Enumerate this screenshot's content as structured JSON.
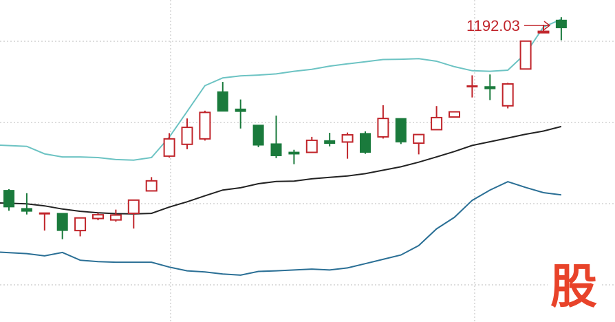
{
  "chart_data": {
    "type": "candlestick",
    "indicator": "bollinger-bands",
    "annotation": {
      "label": "1192.03"
    },
    "candles": [
      {
        "open": 1130.8,
        "close": 1125.0,
        "high": 1131.2,
        "low": 1123.7
      },
      {
        "open": 1124.5,
        "close": 1123.5,
        "high": 1129.8,
        "low": 1122.4
      },
      {
        "open": 1123.0,
        "close": 1123.0,
        "high": 1123.0,
        "low": 1116.8
      },
      {
        "open": 1122.8,
        "close": 1116.8,
        "high": 1122.8,
        "low": 1113.8
      },
      {
        "open": 1116.8,
        "close": 1121.2,
        "high": 1121.2,
        "low": 1114.8
      },
      {
        "open": 1121.0,
        "close": 1122.3,
        "high": 1122.9,
        "low": 1120.4
      },
      {
        "open": 1120.5,
        "close": 1122.2,
        "high": 1124.1,
        "low": 1119.9
      },
      {
        "open": 1122.8,
        "close": 1127.4,
        "high": 1127.4,
        "low": 1117.5
      },
      {
        "open": 1130.6,
        "close": 1134.1,
        "high": 1135.4,
        "low": 1130.6
      },
      {
        "open": 1142.7,
        "close": 1148.7,
        "high": 1150.7,
        "low": 1142.2
      },
      {
        "open": 1146.8,
        "close": 1152.7,
        "high": 1155.8,
        "low": 1145.1
      },
      {
        "open": 1148.7,
        "close": 1157.9,
        "high": 1158.5,
        "low": 1148.1
      },
      {
        "open": 1165.1,
        "close": 1158.3,
        "high": 1168.5,
        "low": 1158.3
      },
      {
        "open": 1159.1,
        "close": 1158.2,
        "high": 1162.4,
        "low": 1152.3
      },
      {
        "open": 1153.5,
        "close": 1146.5,
        "high": 1153.5,
        "low": 1145.8
      },
      {
        "open": 1147.0,
        "close": 1142.8,
        "high": 1156.8,
        "low": 1142.0
      },
      {
        "open": 1144.1,
        "close": 1143.4,
        "high": 1144.9,
        "low": 1139.9
      },
      {
        "open": 1144.0,
        "close": 1148.2,
        "high": 1149.4,
        "low": 1144.0
      },
      {
        "open": 1148.1,
        "close": 1147.1,
        "high": 1150.8,
        "low": 1146.1
      },
      {
        "open": 1147.6,
        "close": 1150.1,
        "high": 1150.9,
        "low": 1141.8
      },
      {
        "open": 1150.6,
        "close": 1144.0,
        "high": 1151.3,
        "low": 1143.5
      },
      {
        "open": 1149.4,
        "close": 1155.8,
        "high": 1160.4,
        "low": 1148.8
      },
      {
        "open": 1155.8,
        "close": 1147.6,
        "high": 1155.8,
        "low": 1146.9
      },
      {
        "open": 1147.2,
        "close": 1150.2,
        "high": 1150.2,
        "low": 1143.3
      },
      {
        "open": 1151.9,
        "close": 1156.1,
        "high": 1160.1,
        "low": 1151.9
      },
      {
        "open": 1156.3,
        "close": 1158.1,
        "high": 1158.1,
        "low": 1156.3
      },
      {
        "open": 1167.2,
        "close": 1167.2,
        "high": 1170.8,
        "low": 1163.1
      },
      {
        "open": 1166.9,
        "close": 1166.1,
        "high": 1171.1,
        "low": 1162.2
      },
      {
        "open": 1160.2,
        "close": 1167.8,
        "high": 1168.2,
        "low": 1159.3
      },
      {
        "open": 1173.0,
        "close": 1182.7,
        "high": 1182.7,
        "low": 1173.0
      },
      {
        "open": 1185.6,
        "close": 1186.1,
        "high": 1188.4,
        "low": 1185.6
      },
      {
        "open": 1190.0,
        "close": 1187.3,
        "high": 1191.0,
        "low": 1183.0
      }
    ],
    "bollinger": {
      "upper": [
        1146.5,
        1146.1,
        1143.5,
        1142.4,
        1142.4,
        1142.2,
        1141.5,
        1141.3,
        1142.2,
        1149.3,
        1158.2,
        1167.2,
        1169.9,
        1170.6,
        1170.9,
        1171.3,
        1172.2,
        1172.9,
        1174.0,
        1174.8,
        1175.5,
        1176.3,
        1176.4,
        1176.6,
        1175.7,
        1173.8,
        1172.4,
        1172.2,
        1172.6,
        1178.4,
        1187.6,
        1190.3
      ],
      "middle": [
        1126.4,
        1126.1,
        1125.4,
        1124.3,
        1123.5,
        1123.0,
        1122.7,
        1122.6,
        1122.8,
        1125.0,
        1126.8,
        1128.9,
        1130.9,
        1131.7,
        1133.1,
        1133.9,
        1134.0,
        1134.8,
        1135.3,
        1135.8,
        1136.6,
        1137.8,
        1139.0,
        1140.6,
        1142.4,
        1144.3,
        1146.4,
        1147.7,
        1149.0,
        1150.3,
        1151.4,
        1153.0
      ],
      "lower": [
        1109.3,
        1108.8,
        1108.0,
        1109.2,
        1106.5,
        1106.0,
        1105.8,
        1105.8,
        1105.8,
        1104.1,
        1102.8,
        1102.4,
        1101.7,
        1101.3,
        1102.6,
        1102.8,
        1103.1,
        1103.4,
        1103.1,
        1103.8,
        1105.3,
        1106.8,
        1108.3,
        1111.6,
        1117.4,
        1121.4,
        1127.3,
        1130.9,
        1133.8,
        1131.8,
        1130.0,
        1129.2
      ]
    },
    "ylim": [
      1085,
      1197
    ],
    "colors": {
      "up": "#c0242a",
      "down": "#1a7a3c",
      "upper_band": "#6cc3c3",
      "middle_band": "#222222",
      "lower_band": "#2a6f95",
      "grid": "#bbbbbb",
      "annotation": "#c0242a",
      "watermark": "#e8432a"
    },
    "watermark": {
      "glyph": "股"
    }
  }
}
